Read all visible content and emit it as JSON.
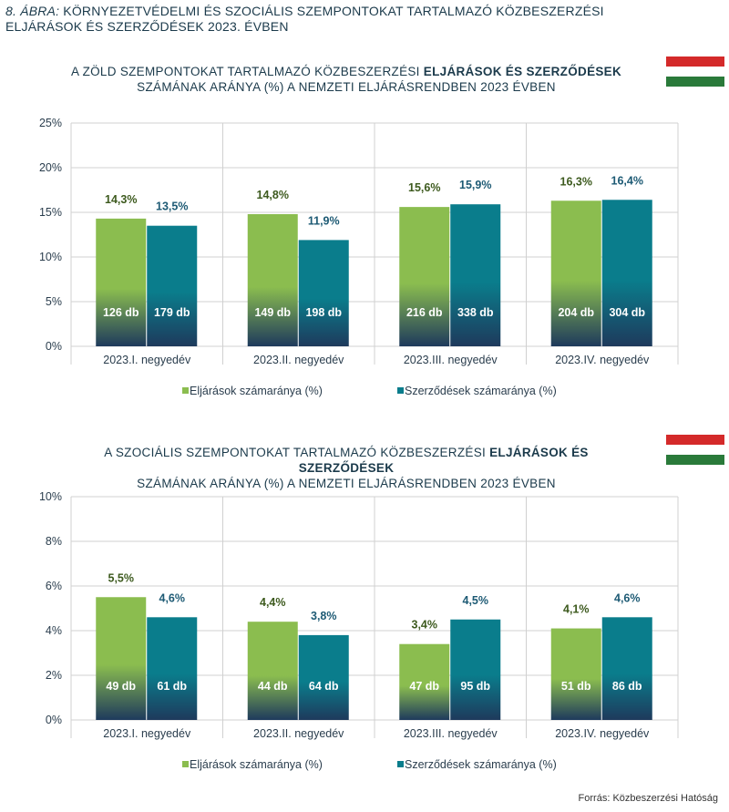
{
  "figure": {
    "lead": "8. ÁBRA:",
    "title": "KÖRNYEZETVÉDELMI ÉS SZOCIÁLIS SZEMPONTOKAT TARTALMAZÓ KÖZBESZERZÉSI ELJÁRÁSOK ÉS SZERZŐDÉSEK 2023. ÉVBEN"
  },
  "colors": {
    "green": "#8bbd4f",
    "teal": "#0a7d8c",
    "dark": "#1e3a5c",
    "green_text": "#3d5a1e",
    "teal_text": "#1d5a74",
    "flag_red": "#d42a2a",
    "flag_white": "#ffffff",
    "flag_green": "#2a7a3a"
  },
  "chart_data": [
    {
      "type": "bar",
      "title_pre": "A ZÖLD SZEMPONTOKAT TARTALMAZÓ KÖZBESZERZÉSI ",
      "title_bold": "ELJÁRÁSOK ÉS SZERZŐDÉSEK",
      "title_line2": "SZÁMÁNAK ARÁNYA (%) A NEMZETI ELJÁRÁSRENDBEN 2023 ÉVBEN",
      "categories": [
        "2023.I. negyedév",
        "2023.II. negyedév",
        "2023.III. negyedév",
        "2023.IV. negyedév"
      ],
      "series": [
        {
          "name": "Eljárások számaránya (%)",
          "values": [
            14.3,
            14.8,
            15.6,
            16.3
          ],
          "labels": [
            "14,3%",
            "14,8%",
            "15,6%",
            "16,3%"
          ],
          "counts": [
            "126 db",
            "149 db",
            "216 db",
            "204 db"
          ]
        },
        {
          "name": "Szerződések számaránya (%)",
          "values": [
            13.5,
            11.9,
            15.9,
            16.4
          ],
          "labels": [
            "13,5%",
            "11,9%",
            "15,9%",
            "16,4%"
          ],
          "counts": [
            "179 db",
            "198 db",
            "338 db",
            "304 db"
          ]
        }
      ],
      "ylim": [
        0,
        25
      ],
      "yticks": [
        "0%",
        "5%",
        "10%",
        "15%",
        "20%",
        "25%"
      ],
      "grid": true,
      "legend": "bottom"
    },
    {
      "type": "bar",
      "title_pre": "A SZOCIÁLIS SZEMPONTOKAT TARTALMAZÓ KÖZBESZERZÉSI ",
      "title_bold": "ELJÁRÁSOK ÉS SZERZŐDÉSEK",
      "title_line2": "SZÁMÁNAK ARÁNYA (%) A NEMZETI ELJÁRÁSRENDBEN 2023 ÉVBEN",
      "categories": [
        "2023.I. negyedév",
        "2023.II. negyedév",
        "2023.III. negyedév",
        "2023.IV. negyedév"
      ],
      "series": [
        {
          "name": "Eljárások számaránya (%)",
          "values": [
            5.5,
            4.4,
            3.4,
            4.1
          ],
          "labels": [
            "5,5%",
            "4,4%",
            "3,4%",
            "4,1%"
          ],
          "counts": [
            "49 db",
            "44 db",
            "47 db",
            "51 db"
          ]
        },
        {
          "name": "Szerződések számaránya (%)",
          "values": [
            4.6,
            3.8,
            4.5,
            4.6
          ],
          "labels": [
            "4,6%",
            "3,8%",
            "4,5%",
            "4,6%"
          ],
          "counts": [
            "61 db",
            "64 db",
            "95 db",
            "86 db"
          ]
        }
      ],
      "ylim": [
        0,
        10
      ],
      "yticks": [
        "0%",
        "2%",
        "4%",
        "6%",
        "8%",
        "10%"
      ],
      "grid": true,
      "legend": "bottom"
    }
  ],
  "source": "Forrás: Közbeszerzési Hatóság"
}
